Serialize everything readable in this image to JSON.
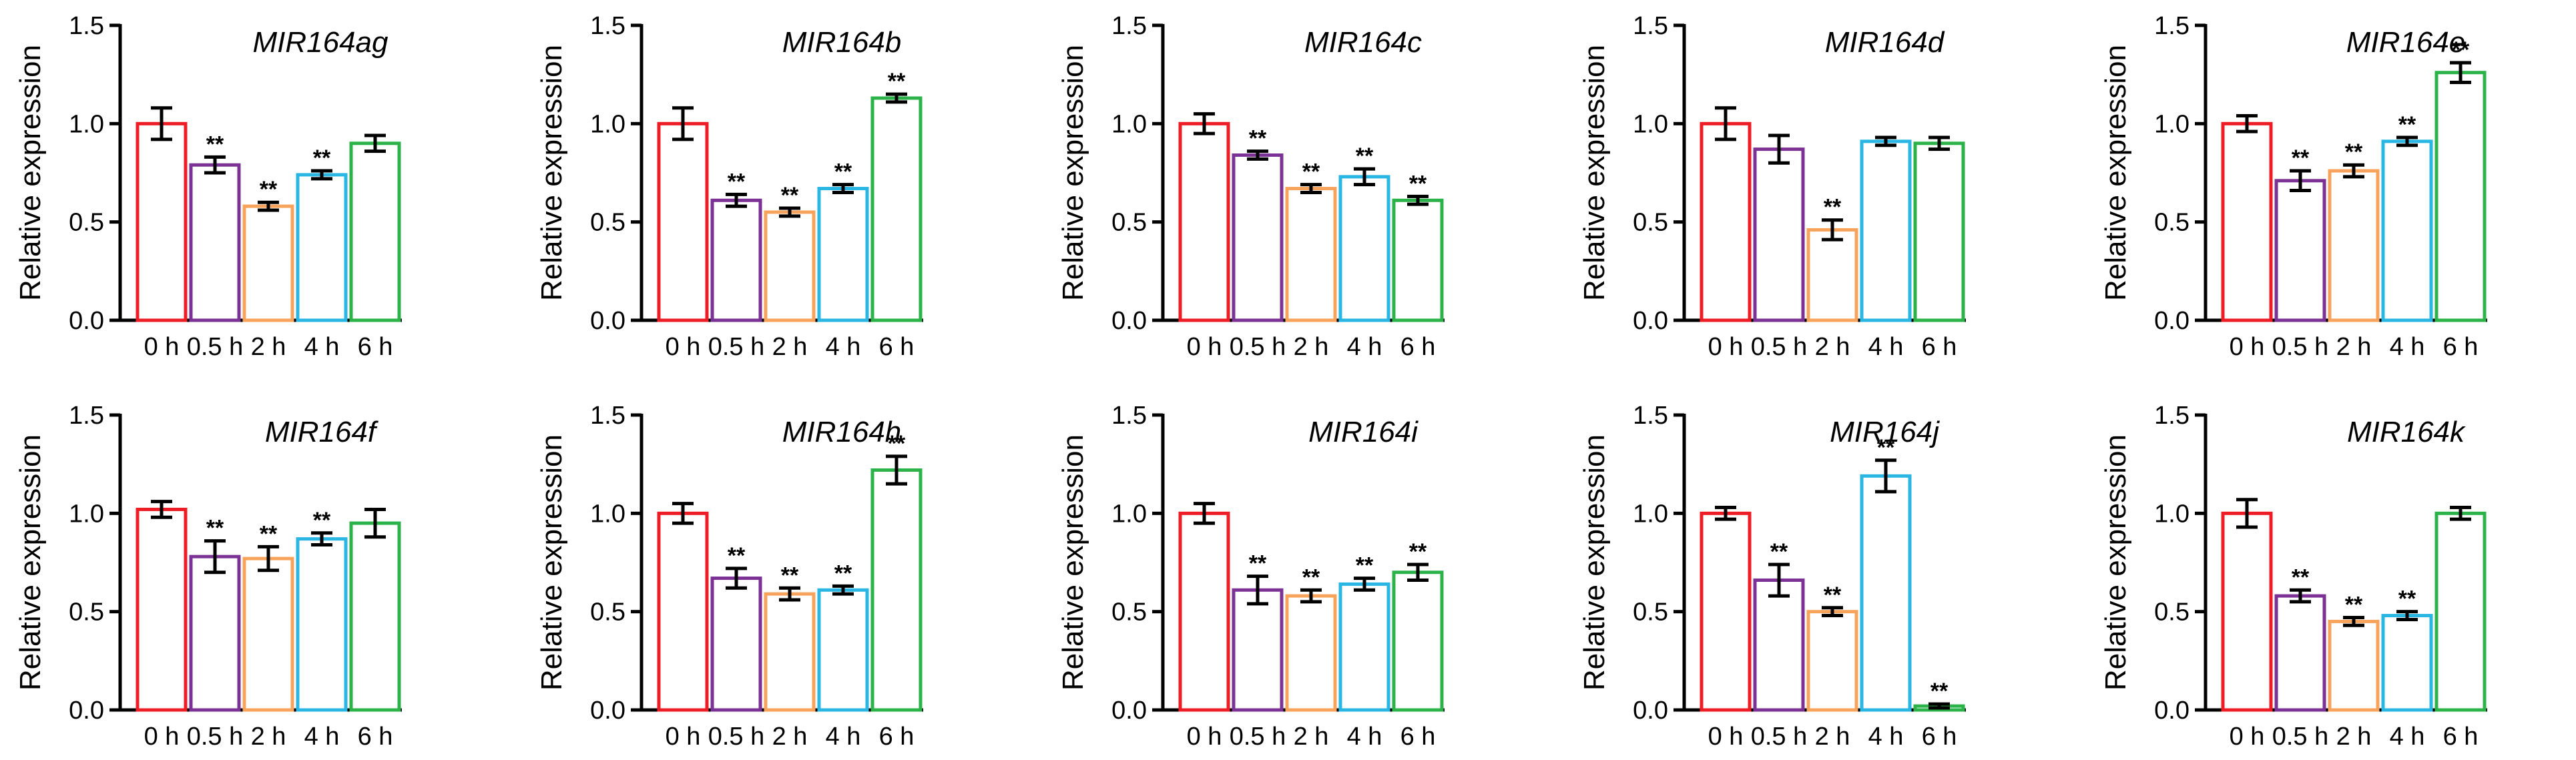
{
  "chart_data": [
    {
      "type": "bar",
      "title": "MIR164ag",
      "ylabel": "Relative expression",
      "xlabel": "",
      "categories": [
        "0 h",
        "0.5 h",
        "2 h",
        "4 h",
        "6 h"
      ],
      "values": [
        1.0,
        0.79,
        0.58,
        0.74,
        0.9
      ],
      "errors": [
        0.08,
        0.04,
        0.02,
        0.02,
        0.04
      ],
      "significance": [
        "",
        "**",
        "**",
        "**",
        ""
      ],
      "ylim": [
        0,
        1.5
      ],
      "yticks": [
        "0.0",
        "0.5",
        "1.0",
        "1.5"
      ]
    },
    {
      "type": "bar",
      "title": "MIR164b",
      "ylabel": "Relative expression",
      "xlabel": "",
      "categories": [
        "0 h",
        "0.5 h",
        "2 h",
        "4 h",
        "6 h"
      ],
      "values": [
        1.0,
        0.61,
        0.55,
        0.67,
        1.13
      ],
      "errors": [
        0.08,
        0.03,
        0.02,
        0.02,
        0.02
      ],
      "significance": [
        "",
        "**",
        "**",
        "**",
        "**"
      ],
      "ylim": [
        0,
        1.5
      ],
      "yticks": [
        "0.0",
        "0.5",
        "1.0",
        "1.5"
      ]
    },
    {
      "type": "bar",
      "title": "MIR164c",
      "ylabel": "Relative expression",
      "xlabel": "",
      "categories": [
        "0 h",
        "0.5 h",
        "2 h",
        "4 h",
        "6 h"
      ],
      "values": [
        1.0,
        0.84,
        0.67,
        0.73,
        0.61
      ],
      "errors": [
        0.05,
        0.02,
        0.02,
        0.04,
        0.02
      ],
      "significance": [
        "",
        "**",
        "**",
        "**",
        "**"
      ],
      "ylim": [
        0,
        1.5
      ],
      "yticks": [
        "0.0",
        "0.5",
        "1.0",
        "1.5"
      ]
    },
    {
      "type": "bar",
      "title": "MIR164d",
      "ylabel": "Relative expression",
      "xlabel": "",
      "categories": [
        "0 h",
        "0.5 h",
        "2 h",
        "4 h",
        "6 h"
      ],
      "values": [
        1.0,
        0.87,
        0.46,
        0.91,
        0.9
      ],
      "errors": [
        0.08,
        0.07,
        0.05,
        0.02,
        0.03
      ],
      "significance": [
        "",
        "",
        "**",
        "",
        ""
      ],
      "ylim": [
        0,
        1.5
      ],
      "yticks": [
        "0.0",
        "0.5",
        "1.0",
        "1.5"
      ]
    },
    {
      "type": "bar",
      "title": "MIR164e",
      "ylabel": "Relative expression",
      "xlabel": "",
      "categories": [
        "0 h",
        "0.5 h",
        "2 h",
        "4 h",
        "6 h"
      ],
      "values": [
        1.0,
        0.71,
        0.76,
        0.91,
        1.26
      ],
      "errors": [
        0.04,
        0.05,
        0.03,
        0.02,
        0.05
      ],
      "significance": [
        "",
        "**",
        "**",
        "**",
        "**"
      ],
      "ylim": [
        0,
        1.5
      ],
      "yticks": [
        "0.0",
        "0.5",
        "1.0",
        "1.5"
      ]
    },
    {
      "type": "bar",
      "title": "MIR164f",
      "ylabel": "Relative expression",
      "xlabel": "",
      "categories": [
        "0 h",
        "0.5 h",
        "2 h",
        "4 h",
        "6 h"
      ],
      "values": [
        1.02,
        0.78,
        0.77,
        0.87,
        0.95
      ],
      "errors": [
        0.04,
        0.08,
        0.06,
        0.03,
        0.07
      ],
      "significance": [
        "",
        "**",
        "**",
        "**",
        ""
      ],
      "ylim": [
        0,
        1.5
      ],
      "yticks": [
        "0.0",
        "0.5",
        "1.0",
        "1.5"
      ]
    },
    {
      "type": "bar",
      "title": "MIR164h",
      "ylabel": "Relative expression",
      "xlabel": "",
      "categories": [
        "0 h",
        "0.5 h",
        "2 h",
        "4 h",
        "6 h"
      ],
      "values": [
        1.0,
        0.67,
        0.59,
        0.61,
        1.22
      ],
      "errors": [
        0.05,
        0.05,
        0.03,
        0.02,
        0.07
      ],
      "significance": [
        "",
        "**",
        "**",
        "**",
        "**"
      ],
      "ylim": [
        0,
        1.5
      ],
      "yticks": [
        "0.0",
        "0.5",
        "1.0",
        "1.5"
      ]
    },
    {
      "type": "bar",
      "title": "MIR164i",
      "ylabel": "Relative expression",
      "xlabel": "",
      "categories": [
        "0 h",
        "0.5 h",
        "2 h",
        "4 h",
        "6 h"
      ],
      "values": [
        1.0,
        0.61,
        0.58,
        0.64,
        0.7
      ],
      "errors": [
        0.05,
        0.07,
        0.03,
        0.03,
        0.04
      ],
      "significance": [
        "",
        "**",
        "**",
        "**",
        "**"
      ],
      "ylim": [
        0,
        1.5
      ],
      "yticks": [
        "0.0",
        "0.5",
        "1.0",
        "1.5"
      ]
    },
    {
      "type": "bar",
      "title": "MIR164j",
      "ylabel": "Relative expression",
      "xlabel": "",
      "categories": [
        "0 h",
        "0.5 h",
        "2 h",
        "4 h",
        "6 h"
      ],
      "values": [
        1.0,
        0.66,
        0.5,
        1.19,
        0.02
      ],
      "errors": [
        0.03,
        0.08,
        0.02,
        0.08,
        0.01
      ],
      "significance": [
        "",
        "**",
        "**",
        "**",
        "**"
      ],
      "ylim": [
        0,
        1.5
      ],
      "yticks": [
        "0.0",
        "0.5",
        "1.0",
        "1.5"
      ]
    },
    {
      "type": "bar",
      "title": "MIR164k",
      "ylabel": "Relative expression",
      "xlabel": "",
      "categories": [
        "0 h",
        "0.5 h",
        "2 h",
        "4 h",
        "6 h"
      ],
      "values": [
        1.0,
        0.58,
        0.45,
        0.48,
        1.0
      ],
      "errors": [
        0.07,
        0.03,
        0.02,
        0.02,
        0.03
      ],
      "significance": [
        "",
        "**",
        "**",
        "**",
        ""
      ],
      "ylim": [
        0,
        1.5
      ],
      "yticks": [
        "0.0",
        "0.5",
        "1.0",
        "1.5"
      ]
    }
  ],
  "colors": {
    "series": [
      "#ee1c25",
      "#7b3294",
      "#f7a35c",
      "#29b6e2",
      "#2bb34a"
    ],
    "axis": "#000000"
  }
}
